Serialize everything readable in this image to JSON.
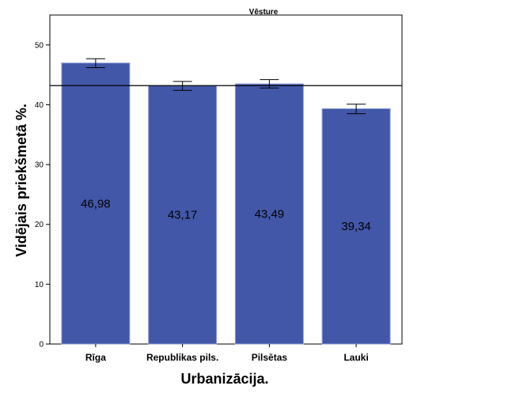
{
  "chart_data": {
    "type": "bar",
    "title": "Vēsture",
    "xlabel": "Urbanizācija.",
    "ylabel": "Vidējais priekšmetā %.",
    "categories": [
      "Rīga",
      "Republikas pils.",
      "Pilsētas",
      "Lauki"
    ],
    "values": [
      46.98,
      43.17,
      43.49,
      39.34
    ],
    "data_labels": [
      "46,98",
      "43,17",
      "43,49",
      "39,34"
    ],
    "error_low": [
      46.2,
      42.4,
      42.8,
      38.5
    ],
    "error_high": [
      47.7,
      43.9,
      44.2,
      40.1
    ],
    "reference_line": 43.2,
    "ylim": [
      0,
      55
    ],
    "yticks": [
      0,
      10,
      20,
      30,
      40,
      50
    ],
    "ytick_labels": [
      "0",
      "10",
      "20",
      "30",
      "40",
      "50"
    ],
    "grid": false,
    "colors": {
      "bar_fill": "#4357a8",
      "bar_edge": "#8fa0d8",
      "axis": "#000000",
      "background": "#ffffff"
    }
  }
}
